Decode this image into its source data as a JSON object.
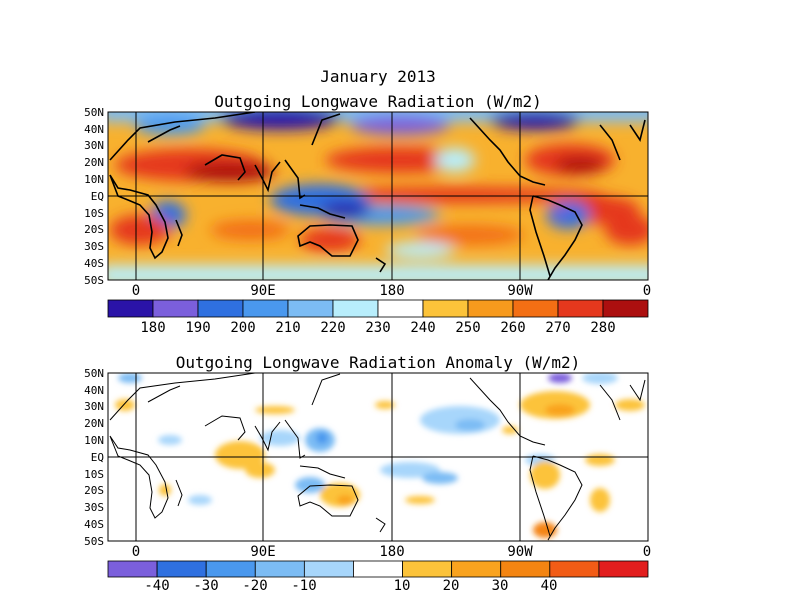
{
  "figure": {
    "title": "January 2013"
  },
  "panels": [
    {
      "title": "Outgoing Longwave Radiation (W/m2)",
      "lat_labels": [
        "50N",
        "40N",
        "30N",
        "20N",
        "10N",
        "EQ",
        "10S",
        "20S",
        "30S",
        "40S",
        "50S"
      ],
      "lon_labels": [
        "0",
        "90E",
        "180",
        "90W",
        "0"
      ],
      "colorbar": {
        "colors": [
          "#2a13a8",
          "#7b5fdc",
          "#2f70e0",
          "#4a98ee",
          "#7cbcf4",
          "#b8eefc",
          "#ffffff",
          "#fcc33a",
          "#f79a1d",
          "#f36f14",
          "#e5381d",
          "#ac0f0f"
        ],
        "labels": [
          "180",
          "190",
          "200",
          "210",
          "220",
          "230",
          "240",
          "250",
          "260",
          "270",
          "280"
        ]
      }
    },
    {
      "title": "Outgoing Longwave Radiation Anomaly (W/m2)",
      "lat_labels": [
        "50N",
        "40N",
        "30N",
        "20N",
        "10N",
        "EQ",
        "10S",
        "20S",
        "30S",
        "40S",
        "50S"
      ],
      "lon_labels": [
        "0",
        "90E",
        "180",
        "90W",
        "0"
      ],
      "colorbar": {
        "colors": [
          "#7b5fdc",
          "#2f70e0",
          "#4a98ee",
          "#7cbcf4",
          "#a7d6fb",
          "#ffffff",
          "#fcc33a",
          "#f9a31f",
          "#f48512",
          "#f25c16",
          "#e21e1e"
        ],
        "labels": [
          "-40",
          "-30",
          "-20",
          "-10",
          "10",
          "20",
          "30",
          "40"
        ]
      }
    }
  ]
}
